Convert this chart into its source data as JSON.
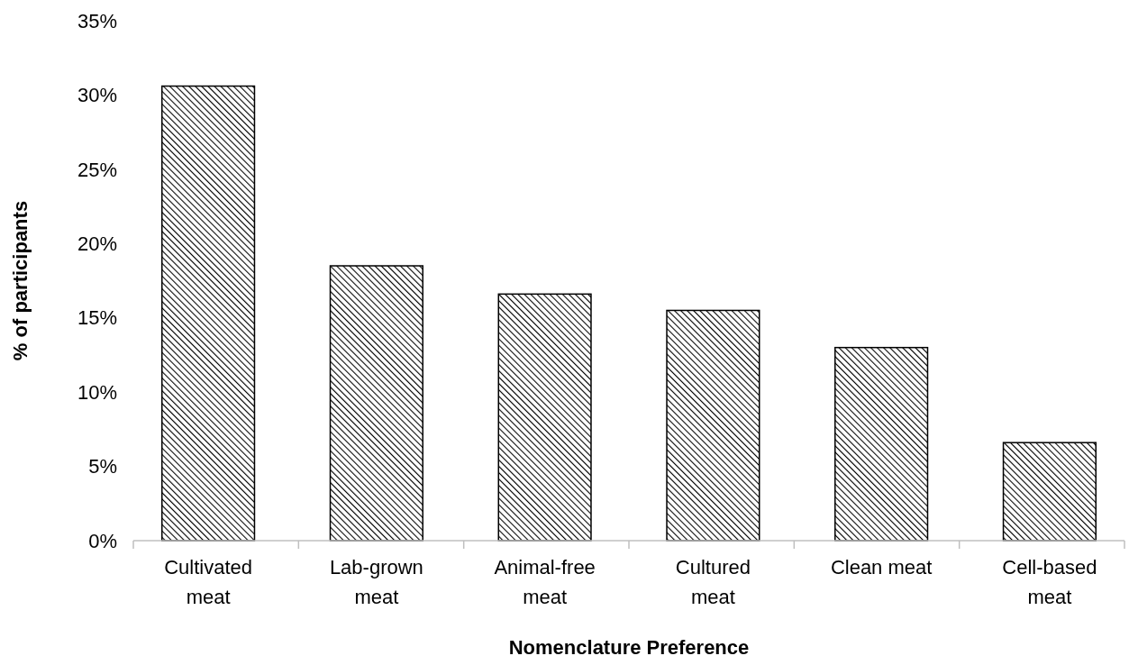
{
  "chart_data": {
    "type": "bar",
    "xlabel": "Nomenclature Preference",
    "ylabel": "% of participants",
    "categories": [
      "Cultivated meat",
      "Lab-grown meat",
      "Animal-free meat",
      "Cultured meat",
      "Clean meat",
      "Cell-based meat"
    ],
    "values": [
      30.6,
      18.5,
      16.6,
      15.5,
      13.0,
      6.6
    ],
    "color": "#000000",
    "ylim": [
      0,
      35
    ],
    "yticks": [
      {
        "value": 0,
        "label": "0%"
      },
      {
        "value": 5,
        "label": "5%"
      },
      {
        "value": 10,
        "label": "10%"
      },
      {
        "value": 15,
        "label": "15%"
      },
      {
        "value": 20,
        "label": "20%"
      },
      {
        "value": 25,
        "label": "25%"
      },
      {
        "value": 30,
        "label": "30%"
      },
      {
        "value": 35,
        "label": "35%"
      }
    ],
    "grid": false
  }
}
